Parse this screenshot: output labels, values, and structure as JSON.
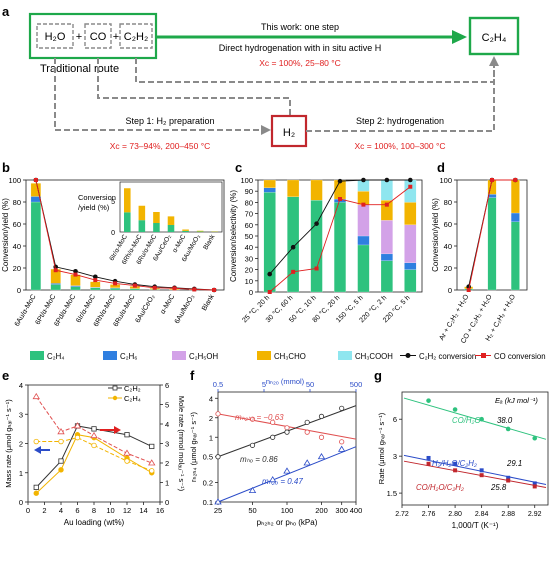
{
  "panel_labels": {
    "a": "a",
    "b": "b",
    "c": "c",
    "d": "d",
    "e": "e",
    "f": "f",
    "g": "g"
  },
  "panel_a": {
    "reactants": [
      "H₂O",
      "+",
      "CO",
      "+",
      "C₂H₂"
    ],
    "traditional_route": "Traditional route",
    "this_work_line1": "This work: one step",
    "this_work_line2": "Direct hydrogenation with in situ active H",
    "this_work_conditions": "Xᴄ = 100%, 25–80 °C",
    "product": "C₂H₄",
    "step1": "Step 1: H₂ preparation",
    "step1_conditions": "Xᴄ = 73–94%, 200–450 °C",
    "intermediate": "H₂",
    "step2": "Step 2: hydrogenation",
    "step2_conditions": "Xᴄ = 100%, 100–300 °C"
  },
  "chart_data": [
    {
      "panel": "b",
      "type": "bar",
      "ylabel": "Conversion/yield (%)",
      "ylim": [
        0,
        100
      ],
      "yticks": [
        "0",
        "20",
        "40",
        "60",
        "80",
        "100"
      ],
      "categories": [
        "6Au/α-MoC",
        "6Pt/α-MoC",
        "6Pd/α-MoC",
        "6Ir/α-MoC",
        "6Rh/α-MoC",
        "6Ru/α-MoC",
        "6Au/CeO₂",
        "α-MoC",
        "6Au/MoO₃",
        "Blank"
      ],
      "series": [
        {
          "name": "C₂H₄",
          "values": [
            80,
            5,
            3,
            2,
            1.5,
            1,
            0.5,
            0.3,
            0.2,
            0
          ]
        },
        {
          "name": "C₂H₆",
          "values": [
            5,
            1,
            1,
            0.5,
            0.5,
            0.3,
            0,
            0,
            0,
            0
          ]
        },
        {
          "name": "CH₃CHO",
          "values": [
            12,
            13,
            10,
            5,
            3,
            2,
            1,
            1,
            0.5,
            0
          ]
        }
      ],
      "lines": [
        {
          "name": "C₂H₂ conversion",
          "values": [
            100,
            21,
            17,
            12,
            8,
            5,
            3,
            2,
            1,
            0
          ]
        },
        {
          "name": "CO conversion",
          "values": [
            100,
            18,
            14,
            9,
            6,
            4,
            2,
            1.5,
            0.5,
            0
          ]
        }
      ],
      "inset": {
        "ylabel": "Conversion /yield (%)",
        "ylim": [
          0,
          8
        ],
        "yticks": [
          "0",
          "5"
        ],
        "categories": [
          "6Ir/α-MoC",
          "6Rh/α-MoC",
          "6Ru/α-MoC",
          "6Au/CeO₂",
          "α-MoC",
          "6Au/MoO₃",
          "Blank"
        ],
        "values": [
          7.0,
          4.2,
          3.2,
          2.5,
          0.4,
          0.2,
          0.1
        ]
      }
    },
    {
      "panel": "c",
      "type": "bar",
      "ylabel": "Conversion/selectivity (%)",
      "ylim": [
        0,
        100
      ],
      "yticks": [
        "0",
        "10",
        "20",
        "30",
        "40",
        "50",
        "60",
        "70",
        "80",
        "90",
        "100"
      ],
      "categories": [
        "25 °C, 20 h",
        "30 °C, 60 h",
        "50 °C, 10 h",
        "80 °C, 20 h",
        "150 °C, 5 h",
        "220 °C, 2 h",
        "220 °C, 5 h"
      ],
      "series": [
        {
          "name": "C₂H₄",
          "values": [
            89,
            85,
            82,
            80,
            42,
            28,
            20
          ]
        },
        {
          "name": "C₂H₆",
          "values": [
            4,
            0,
            0,
            3,
            8,
            6,
            6
          ]
        },
        {
          "name": "C₂H₅OH",
          "values": [
            0,
            0,
            0,
            0,
            28,
            30,
            34
          ]
        },
        {
          "name": "CH₃CHO",
          "values": [
            7,
            15,
            18,
            17,
            12,
            18,
            20
          ]
        },
        {
          "name": "CH₃COOH",
          "values": [
            0,
            0,
            0,
            0,
            10,
            18,
            20
          ]
        }
      ],
      "lines": [
        {
          "name": "C₂H₂ conversion",
          "values": [
            16,
            40,
            61,
            99,
            100,
            100,
            100
          ]
        },
        {
          "name": "CO conversion",
          "values": [
            0,
            18,
            21,
            83,
            78,
            78,
            94
          ]
        }
      ]
    },
    {
      "panel": "d",
      "type": "bar",
      "ylabel": "Conversion/yield (%)",
      "ylim": [
        0,
        100
      ],
      "yticks": [
        "0",
        "20",
        "40",
        "60",
        "80",
        "100"
      ],
      "categories": [
        "Ar + C₂H₂ + H₂O",
        "CO + C₂H₂ + H₂O",
        "H₂ + C₂H₂ + H₂O"
      ],
      "series": [
        {
          "name": "C₂H₄",
          "values": [
            1,
            84,
            62
          ]
        },
        {
          "name": "C₂H₆",
          "values": [
            0,
            3,
            8
          ]
        },
        {
          "name": "CH₃CHO",
          "values": [
            2,
            13,
            30
          ]
        }
      ],
      "lines": [
        {
          "name": "C₂H₂ conversion",
          "values": [
            3,
            100,
            100
          ]
        },
        {
          "name": "CO conversion",
          "values": [
            0,
            100,
            100
          ]
        }
      ]
    },
    {
      "panel": "e",
      "type": "line",
      "xlabel": "Au loading (wt%)",
      "ylabel": "Mass rate (μmol gₕₐₗ⁻¹ s⁻¹)",
      "ylabel_right": "Mole rate (mmol molₐᵤ⁻¹ s⁻¹)",
      "xlim": [
        0,
        16
      ],
      "ylim": [
        0,
        4
      ],
      "ylim_right": [
        0,
        6
      ],
      "xticks": [
        "0",
        "2",
        "4",
        "6",
        "8",
        "10",
        "12",
        "14",
        "16"
      ],
      "yticks": [
        "0",
        "1",
        "2",
        "3",
        "4"
      ],
      "yticks_right": [
        "0",
        "1",
        "2",
        "3",
        "4",
        "5",
        "6"
      ],
      "x": [
        1,
        4,
        6,
        8,
        12,
        15
      ],
      "series": [
        {
          "name": "C₂H₂",
          "axis": "left",
          "values": [
            0.5,
            1.4,
            2.6,
            2.5,
            2.3,
            1.9
          ]
        },
        {
          "name": "C₂H₄",
          "axis": "left",
          "values": [
            0.3,
            1.1,
            2.3,
            2.2,
            1.5,
            1.0
          ]
        },
        {
          "name": "C₂H₂ mole",
          "axis": "right",
          "values": [
            5.4,
            3.6,
            3.9,
            3.4,
            2.5,
            2.0
          ]
        },
        {
          "name": "C₂H₄ mole",
          "axis": "right",
          "values": [
            3.1,
            3.1,
            3.3,
            2.9,
            2.1,
            1.6
          ]
        }
      ]
    },
    {
      "panel": "f",
      "type": "scatter",
      "xlabel": "pₕ₂ₕ₂ or pₕₒ (kPa)",
      "xlabel_top": "nₕ₂ₒ (mmol)",
      "ylabel": "rₕ₂ₕ₄ (μmol gₕₐₗ⁻¹ s⁻¹)",
      "xticks": [
        "25",
        "50",
        "100",
        "200",
        "300",
        "400"
      ],
      "xticks_top": [
        "0.5",
        "5",
        "50",
        "500"
      ],
      "yticks": [
        "0.1",
        "0.2",
        "0.5",
        "1",
        "2",
        "4"
      ],
      "xlim": [
        25,
        400
      ],
      "ylim": [
        0.1,
        5
      ],
      "series": [
        {
          "name": "mₕ₂ₕ₂",
          "label": "mₕ₂ₕ₂ = −0.63",
          "x": [
            25,
            50,
            75,
            100,
            150,
            200,
            300
          ],
          "y": [
            2.3,
            1.9,
            1.7,
            1.4,
            1.2,
            1.0,
            0.85
          ]
        },
        {
          "name": "mₕₒ",
          "label": "mₕₒ = 0.86",
          "x": [
            25,
            50,
            75,
            100,
            150,
            200,
            300
          ],
          "y": [
            0.5,
            0.75,
            1.0,
            1.2,
            1.7,
            2.1,
            2.8
          ]
        },
        {
          "name": "mₕ₂ₒ",
          "label": "mₕ₂ₒ = 0.47",
          "x": [
            25,
            50,
            75,
            100,
            150,
            200,
            300
          ],
          "y": [
            0.1,
            0.15,
            0.22,
            0.3,
            0.4,
            0.5,
            0.65
          ]
        }
      ]
    },
    {
      "panel": "g",
      "type": "scatter",
      "xlabel": "1,000/T (K⁻¹)",
      "ylabel": "Rate (μmol gₕₐₗ⁻¹ s⁻¹)",
      "ea_label": "Eₐ (kJ mol⁻¹)",
      "xlim": [
        2.72,
        2.94
      ],
      "xticks": [
        "2.72",
        "2.76",
        "2.80",
        "2.84",
        "2.88",
        "2.92"
      ],
      "yticks": [
        "1.5",
        "3",
        "6"
      ],
      "series": [
        {
          "name": "CO/H₂O",
          "ea": "38.0",
          "x": [
            2.76,
            2.8,
            2.84,
            2.88,
            2.92
          ],
          "y": [
            8.5,
            7.2,
            6.0,
            5.0,
            4.2
          ]
        },
        {
          "name": "H₂/H₂O/C₂H₂",
          "ea": "29.1",
          "x": [
            2.76,
            2.8,
            2.84,
            2.88,
            2.92
          ],
          "y": [
            2.9,
            2.6,
            2.3,
            2.0,
            1.8
          ]
        },
        {
          "name": "CO/H₂O/C₂H₂",
          "ea": "25.8",
          "x": [
            2.76,
            2.8,
            2.84,
            2.88,
            2.92
          ],
          "y": [
            2.6,
            2.3,
            2.1,
            1.9,
            1.7
          ]
        }
      ]
    }
  ],
  "legend": [
    {
      "name": "C₂H₄",
      "type": "box",
      "color": "#2ec27e"
    },
    {
      "name": "C₂H₆",
      "type": "box",
      "color": "#2f7fe0"
    },
    {
      "name": "C₂H₅OH",
      "type": "box",
      "color": "#d3a2e8"
    },
    {
      "name": "CH₃CHO",
      "type": "box",
      "color": "#f2b400"
    },
    {
      "name": "CH₃COOH",
      "type": "box",
      "color": "#8fe6ef"
    },
    {
      "name": "C₂H₂ conversion",
      "type": "line",
      "color": "#111111"
    },
    {
      "name": "CO conversion",
      "type": "line",
      "color": "#e02020"
    }
  ],
  "colors": {
    "C2H4": "#2ec27e",
    "C2H6": "#2f7fe0",
    "C2H5OH": "#d3a2e8",
    "CH3CHO": "#f2b400",
    "CH3COOH": "#8fe6ef",
    "black": "#111111",
    "red": "#e02020",
    "green_box": "#1ea84a",
    "red_box": "#c1272d",
    "gray": "#8a8a8a",
    "blue": "#2b4cc8"
  }
}
